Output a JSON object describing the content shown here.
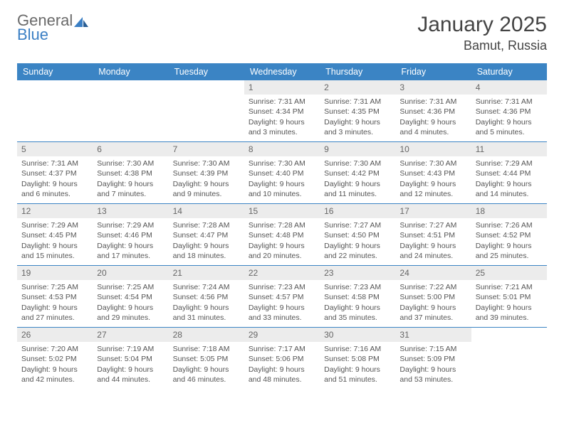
{
  "brand": {
    "part1": "General",
    "part2": "Blue",
    "logo_color": "#3b7fc4",
    "text_color": "#6a6a6a"
  },
  "title": "January 2025",
  "location": "Bamut, Russia",
  "colors": {
    "header_bg": "#3b84c4",
    "header_text": "#ffffff",
    "daynum_bg": "#ececec",
    "rule": "#3b84c4",
    "body_text": "#555555"
  },
  "days_of_week": [
    "Sunday",
    "Monday",
    "Tuesday",
    "Wednesday",
    "Thursday",
    "Friday",
    "Saturday"
  ],
  "weeks": [
    [
      {
        "n": "",
        "lines": []
      },
      {
        "n": "",
        "lines": []
      },
      {
        "n": "",
        "lines": []
      },
      {
        "n": "1",
        "lines": [
          "Sunrise: 7:31 AM",
          "Sunset: 4:34 PM",
          "Daylight: 9 hours and 3 minutes."
        ]
      },
      {
        "n": "2",
        "lines": [
          "Sunrise: 7:31 AM",
          "Sunset: 4:35 PM",
          "Daylight: 9 hours and 3 minutes."
        ]
      },
      {
        "n": "3",
        "lines": [
          "Sunrise: 7:31 AM",
          "Sunset: 4:36 PM",
          "Daylight: 9 hours and 4 minutes."
        ]
      },
      {
        "n": "4",
        "lines": [
          "Sunrise: 7:31 AM",
          "Sunset: 4:36 PM",
          "Daylight: 9 hours and 5 minutes."
        ]
      }
    ],
    [
      {
        "n": "5",
        "lines": [
          "Sunrise: 7:31 AM",
          "Sunset: 4:37 PM",
          "Daylight: 9 hours and 6 minutes."
        ]
      },
      {
        "n": "6",
        "lines": [
          "Sunrise: 7:30 AM",
          "Sunset: 4:38 PM",
          "Daylight: 9 hours and 7 minutes."
        ]
      },
      {
        "n": "7",
        "lines": [
          "Sunrise: 7:30 AM",
          "Sunset: 4:39 PM",
          "Daylight: 9 hours and 9 minutes."
        ]
      },
      {
        "n": "8",
        "lines": [
          "Sunrise: 7:30 AM",
          "Sunset: 4:40 PM",
          "Daylight: 9 hours and 10 minutes."
        ]
      },
      {
        "n": "9",
        "lines": [
          "Sunrise: 7:30 AM",
          "Sunset: 4:42 PM",
          "Daylight: 9 hours and 11 minutes."
        ]
      },
      {
        "n": "10",
        "lines": [
          "Sunrise: 7:30 AM",
          "Sunset: 4:43 PM",
          "Daylight: 9 hours and 12 minutes."
        ]
      },
      {
        "n": "11",
        "lines": [
          "Sunrise: 7:29 AM",
          "Sunset: 4:44 PM",
          "Daylight: 9 hours and 14 minutes."
        ]
      }
    ],
    [
      {
        "n": "12",
        "lines": [
          "Sunrise: 7:29 AM",
          "Sunset: 4:45 PM",
          "Daylight: 9 hours and 15 minutes."
        ]
      },
      {
        "n": "13",
        "lines": [
          "Sunrise: 7:29 AM",
          "Sunset: 4:46 PM",
          "Daylight: 9 hours and 17 minutes."
        ]
      },
      {
        "n": "14",
        "lines": [
          "Sunrise: 7:28 AM",
          "Sunset: 4:47 PM",
          "Daylight: 9 hours and 18 minutes."
        ]
      },
      {
        "n": "15",
        "lines": [
          "Sunrise: 7:28 AM",
          "Sunset: 4:48 PM",
          "Daylight: 9 hours and 20 minutes."
        ]
      },
      {
        "n": "16",
        "lines": [
          "Sunrise: 7:27 AM",
          "Sunset: 4:50 PM",
          "Daylight: 9 hours and 22 minutes."
        ]
      },
      {
        "n": "17",
        "lines": [
          "Sunrise: 7:27 AM",
          "Sunset: 4:51 PM",
          "Daylight: 9 hours and 24 minutes."
        ]
      },
      {
        "n": "18",
        "lines": [
          "Sunrise: 7:26 AM",
          "Sunset: 4:52 PM",
          "Daylight: 9 hours and 25 minutes."
        ]
      }
    ],
    [
      {
        "n": "19",
        "lines": [
          "Sunrise: 7:25 AM",
          "Sunset: 4:53 PM",
          "Daylight: 9 hours and 27 minutes."
        ]
      },
      {
        "n": "20",
        "lines": [
          "Sunrise: 7:25 AM",
          "Sunset: 4:54 PM",
          "Daylight: 9 hours and 29 minutes."
        ]
      },
      {
        "n": "21",
        "lines": [
          "Sunrise: 7:24 AM",
          "Sunset: 4:56 PM",
          "Daylight: 9 hours and 31 minutes."
        ]
      },
      {
        "n": "22",
        "lines": [
          "Sunrise: 7:23 AM",
          "Sunset: 4:57 PM",
          "Daylight: 9 hours and 33 minutes."
        ]
      },
      {
        "n": "23",
        "lines": [
          "Sunrise: 7:23 AM",
          "Sunset: 4:58 PM",
          "Daylight: 9 hours and 35 minutes."
        ]
      },
      {
        "n": "24",
        "lines": [
          "Sunrise: 7:22 AM",
          "Sunset: 5:00 PM",
          "Daylight: 9 hours and 37 minutes."
        ]
      },
      {
        "n": "25",
        "lines": [
          "Sunrise: 7:21 AM",
          "Sunset: 5:01 PM",
          "Daylight: 9 hours and 39 minutes."
        ]
      }
    ],
    [
      {
        "n": "26",
        "lines": [
          "Sunrise: 7:20 AM",
          "Sunset: 5:02 PM",
          "Daylight: 9 hours and 42 minutes."
        ]
      },
      {
        "n": "27",
        "lines": [
          "Sunrise: 7:19 AM",
          "Sunset: 5:04 PM",
          "Daylight: 9 hours and 44 minutes."
        ]
      },
      {
        "n": "28",
        "lines": [
          "Sunrise: 7:18 AM",
          "Sunset: 5:05 PM",
          "Daylight: 9 hours and 46 minutes."
        ]
      },
      {
        "n": "29",
        "lines": [
          "Sunrise: 7:17 AM",
          "Sunset: 5:06 PM",
          "Daylight: 9 hours and 48 minutes."
        ]
      },
      {
        "n": "30",
        "lines": [
          "Sunrise: 7:16 AM",
          "Sunset: 5:08 PM",
          "Daylight: 9 hours and 51 minutes."
        ]
      },
      {
        "n": "31",
        "lines": [
          "Sunrise: 7:15 AM",
          "Sunset: 5:09 PM",
          "Daylight: 9 hours and 53 minutes."
        ]
      },
      {
        "n": "",
        "lines": []
      }
    ]
  ]
}
